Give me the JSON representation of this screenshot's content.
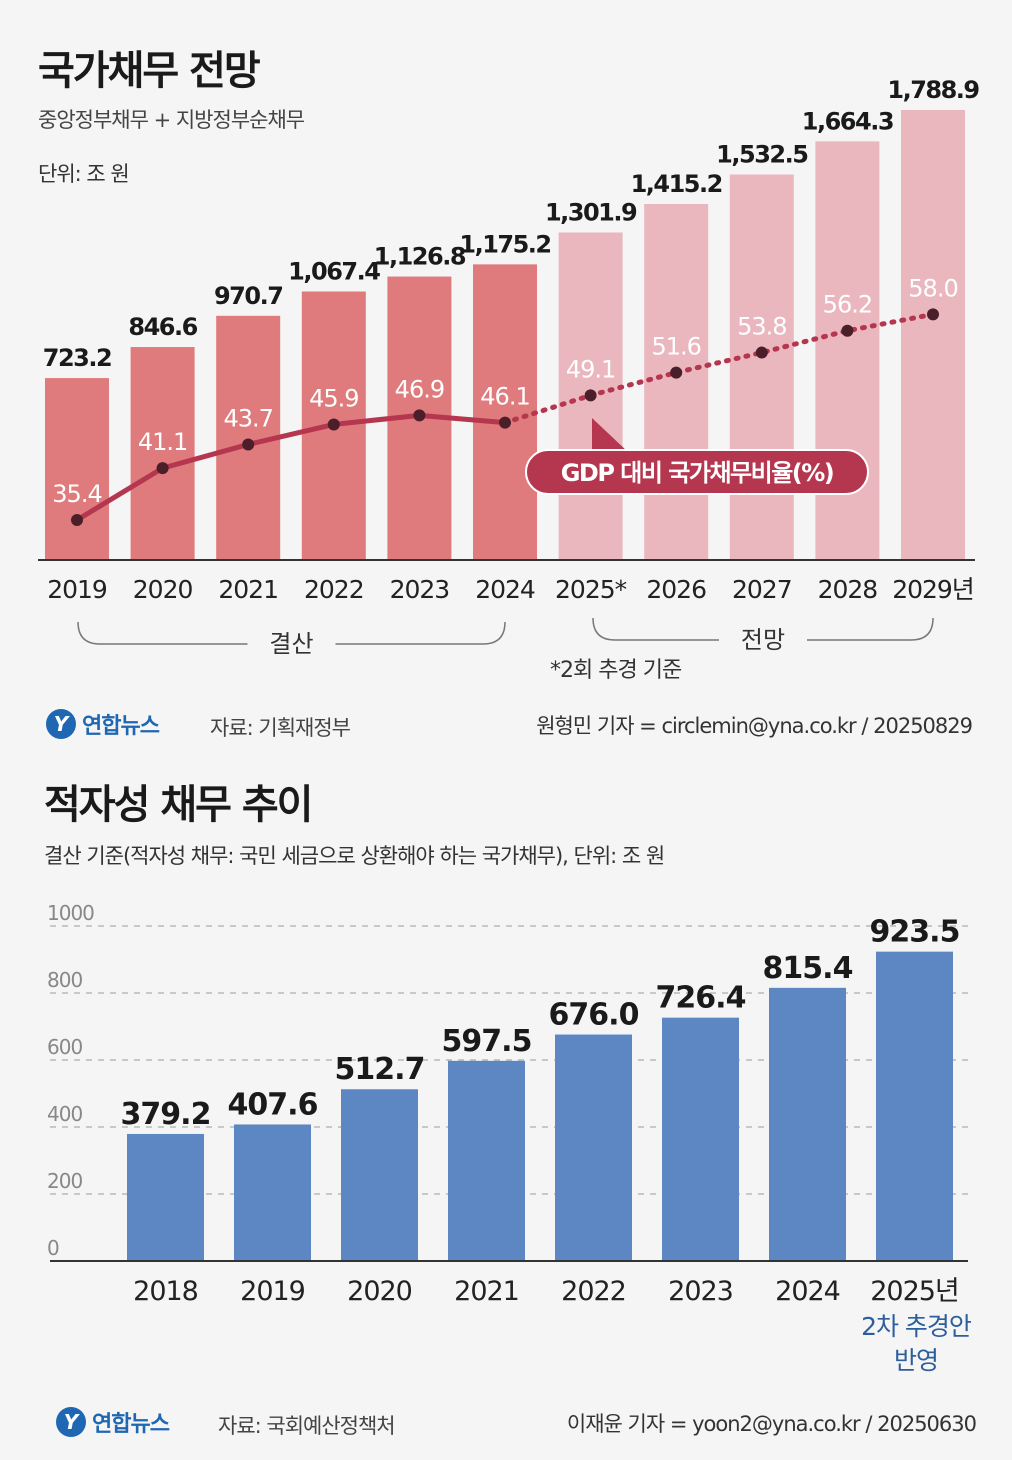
{
  "colors": {
    "bar_actual": "#df7b7d",
    "bar_forecast": "#ebb7bf",
    "ratio_line": "#b5364f",
    "bar_blue": "#5d87c3",
    "note_blue": "#2d5e9c"
  },
  "section1": {
    "title": "국가채무 전망",
    "subtitle": "중앙정부채무 + 지방정부순채무",
    "unit": "단위: 조 원",
    "legend_label": "GDP 대비 국가채무비율(%)",
    "group_actual": "결산",
    "group_forecast": "전망",
    "footnote": "*2회 추경 기준",
    "logo": "연합뉴스",
    "source": "자료: 기획재정부",
    "credit": "원형민 기자 = circlemin@yna.co.kr / 20250829"
  },
  "section2": {
    "title": "적자성 채무 추이",
    "subtitle": "결산 기준(적자성 채무: 국민 세금으로 상환해야 하는 국가채무), 단위: 조 원",
    "note_line1": "2차 추경안",
    "note_line2": "반영",
    "logo": "연합뉴스",
    "source": "자료: 국회예산정책처",
    "credit": "이재윤 기자 = yoon2@yna.co.kr / 20250630"
  },
  "chart_data": [
    {
      "type": "bar",
      "title": "국가채무 전망",
      "categories": [
        "2019",
        "2020",
        "2021",
        "2022",
        "2023",
        "2024",
        "2025*",
        "2026",
        "2027",
        "2028",
        "2029년"
      ],
      "series": [
        {
          "name": "국가채무 (조 원)",
          "values": [
            723.2,
            846.6,
            970.7,
            1067.4,
            1126.8,
            1175.2,
            1301.9,
            1415.2,
            1532.5,
            1664.3,
            1788.9
          ],
          "labels": [
            "723.2",
            "846.6",
            "970.7",
            "1,067.4",
            "1,126.8",
            "1,175.2",
            "1,301.9",
            "1,415.2",
            "1,532.5",
            "1,664.3",
            "1,788.9"
          ]
        },
        {
          "name": "GDP 대비 국가채무비율(%)",
          "type": "line",
          "values": [
            35.4,
            41.1,
            43.7,
            45.9,
            46.9,
            46.1,
            49.1,
            51.6,
            53.8,
            56.2,
            58.0
          ],
          "labels": [
            "35.4",
            "41.1",
            "43.7",
            "45.9",
            "46.9",
            "46.1",
            "49.1",
            "51.6",
            "53.8",
            "56.2",
            "58.0"
          ]
        }
      ],
      "actual_count": 6,
      "ylabel": "단위: 조 원"
    },
    {
      "type": "bar",
      "title": "적자성 채무 추이",
      "categories": [
        "2018",
        "2019",
        "2020",
        "2021",
        "2022",
        "2023",
        "2024",
        "2025년"
      ],
      "values": [
        379.2,
        407.6,
        512.7,
        597.5,
        676.0,
        726.4,
        815.4,
        923.5
      ],
      "labels": [
        "379.2",
        "407.6",
        "512.7",
        "597.5",
        "676.0",
        "726.4",
        "815.4",
        "923.5"
      ],
      "yticks": [
        "0",
        "200",
        "400",
        "600",
        "800",
        "1000"
      ],
      "ylim": [
        0,
        1000
      ],
      "grid": true
    }
  ]
}
